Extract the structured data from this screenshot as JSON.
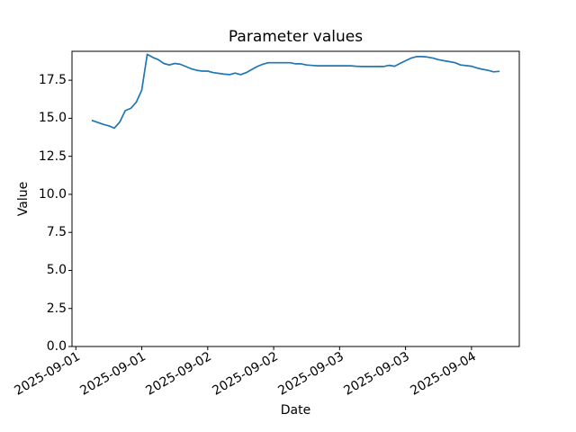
{
  "chart_data": {
    "type": "line",
    "title": "Parameter values",
    "xlabel": "Date",
    "ylabel": "Value",
    "grid": false,
    "legend": false,
    "colors": {
      "line": "#1f77b4",
      "text": "#000000",
      "spine": "#000000",
      "background": "#ffffff"
    },
    "ylim": [
      0,
      19.4
    ],
    "y_ticks": [
      0,
      2.5,
      5,
      7.5,
      10,
      12.5,
      15,
      17.5
    ],
    "y_tick_labels": [
      "0.0",
      "2.5",
      "5.0",
      "7.5",
      "10.0",
      "12.5",
      "15.0",
      "17.5"
    ],
    "x_unit": "hours since 2025-09-01 00:00",
    "xlim_hours": [
      -0.7,
      80.7
    ],
    "x_tick_hours": [
      0,
      12,
      24,
      36,
      48,
      60,
      72
    ],
    "x_tick_labels": [
      "2025-09-01",
      "2025-09-01",
      "2025-09-02",
      "2025-09-02",
      "2025-09-03",
      "2025-09-03",
      "2025-09-04"
    ],
    "series": [
      {
        "name": "Parameter values",
        "x_hours": [
          3,
          4,
          5,
          6,
          7,
          8,
          9,
          10,
          11,
          12,
          13,
          14,
          15,
          16,
          17,
          18,
          19,
          20,
          21,
          22,
          23,
          24,
          25,
          26,
          27,
          28,
          29,
          30,
          31,
          32,
          33,
          34,
          35,
          36,
          37,
          38,
          39,
          40,
          41,
          42,
          43,
          44,
          45,
          46,
          47,
          48,
          49,
          50,
          51,
          52,
          53,
          54,
          55,
          56,
          57,
          58,
          59,
          60,
          61,
          62,
          63,
          64,
          65,
          66,
          67,
          68,
          69,
          70,
          71,
          72,
          73,
          74,
          75,
          76,
          77
        ],
        "values": [
          14.85,
          14.72,
          14.6,
          14.5,
          14.35,
          14.75,
          15.5,
          15.65,
          16.05,
          16.85,
          19.2,
          19.0,
          18.85,
          18.6,
          18.5,
          18.6,
          18.55,
          18.4,
          18.25,
          18.15,
          18.1,
          18.1,
          18.0,
          17.95,
          17.9,
          17.87,
          17.97,
          17.87,
          18.0,
          18.2,
          18.4,
          18.55,
          18.65,
          18.65,
          18.65,
          18.65,
          18.65,
          18.58,
          18.58,
          18.5,
          18.47,
          18.45,
          18.45,
          18.45,
          18.45,
          18.45,
          18.45,
          18.45,
          18.42,
          18.4,
          18.4,
          18.4,
          18.4,
          18.4,
          18.48,
          18.42,
          18.6,
          18.78,
          18.95,
          19.05,
          19.05,
          19.02,
          18.95,
          18.85,
          18.78,
          18.72,
          18.65,
          18.5,
          18.46,
          18.42,
          18.3,
          18.22,
          18.15,
          18.05,
          18.08
        ]
      }
    ]
  }
}
